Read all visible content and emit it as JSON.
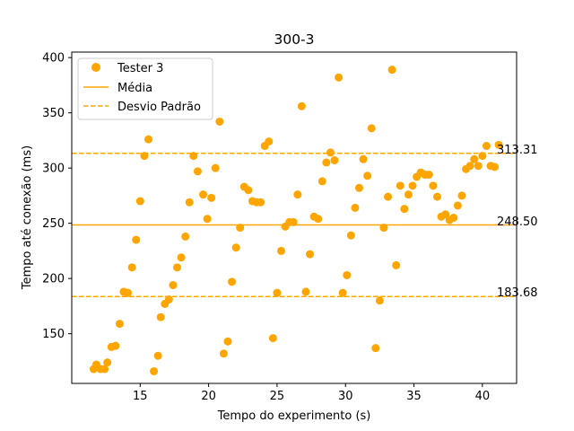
{
  "chart_data": {
    "type": "scatter",
    "title": "300-3",
    "xlabel": "Tempo do experimento (s)",
    "ylabel": "Tempo até conexão (ms)",
    "xlim": [
      10.0,
      42.5
    ],
    "ylim": [
      105,
      405
    ],
    "xticks": [
      15,
      20,
      25,
      30,
      35,
      40
    ],
    "yticks": [
      150,
      200,
      250,
      300,
      350,
      400
    ],
    "grid": false,
    "legend_position": "top-left",
    "color": "#ffa500",
    "legend": {
      "scatter_label": "Tester 3",
      "mean_label": "Média",
      "std_label": "Desvio Padrão"
    },
    "mean": 248.5,
    "upper": 313.31,
    "lower": 183.68,
    "mean_text": "248.50",
    "upper_text": "313.31",
    "lower_text": "183.68",
    "points": [
      [
        11.6,
        118
      ],
      [
        11.8,
        122
      ],
      [
        12.1,
        118
      ],
      [
        12.4,
        118
      ],
      [
        12.6,
        124
      ],
      [
        12.9,
        138
      ],
      [
        13.2,
        139
      ],
      [
        13.5,
        159
      ],
      [
        13.8,
        188
      ],
      [
        14.1,
        187
      ],
      [
        14.4,
        210
      ],
      [
        14.7,
        235
      ],
      [
        15.0,
        270
      ],
      [
        15.3,
        311
      ],
      [
        15.6,
        326
      ],
      [
        16.0,
        116
      ],
      [
        16.3,
        130
      ],
      [
        16.5,
        165
      ],
      [
        16.8,
        177
      ],
      [
        17.1,
        181
      ],
      [
        17.4,
        194
      ],
      [
        17.7,
        210
      ],
      [
        18.0,
        219
      ],
      [
        18.3,
        238
      ],
      [
        18.6,
        269
      ],
      [
        18.9,
        311
      ],
      [
        19.2,
        297
      ],
      [
        19.6,
        276
      ],
      [
        19.9,
        254
      ],
      [
        20.2,
        273
      ],
      [
        20.5,
        300
      ],
      [
        20.8,
        342
      ],
      [
        21.1,
        132
      ],
      [
        21.4,
        143
      ],
      [
        21.7,
        197
      ],
      [
        22.0,
        228
      ],
      [
        22.3,
        246
      ],
      [
        22.6,
        283
      ],
      [
        22.9,
        280
      ],
      [
        23.2,
        270
      ],
      [
        23.5,
        269
      ],
      [
        23.8,
        269
      ],
      [
        24.1,
        320
      ],
      [
        24.4,
        324
      ],
      [
        24.7,
        146
      ],
      [
        25.0,
        187
      ],
      [
        25.3,
        225
      ],
      [
        25.6,
        247
      ],
      [
        25.9,
        251
      ],
      [
        26.2,
        251
      ],
      [
        26.5,
        276
      ],
      [
        26.8,
        356
      ],
      [
        27.1,
        188
      ],
      [
        27.4,
        222
      ],
      [
        27.7,
        256
      ],
      [
        28.0,
        254
      ],
      [
        28.3,
        288
      ],
      [
        28.6,
        305
      ],
      [
        28.9,
        314
      ],
      [
        29.2,
        307
      ],
      [
        29.5,
        382
      ],
      [
        29.8,
        187
      ],
      [
        30.1,
        203
      ],
      [
        30.4,
        239
      ],
      [
        30.7,
        264
      ],
      [
        31.0,
        282
      ],
      [
        31.3,
        308
      ],
      [
        31.6,
        293
      ],
      [
        31.9,
        336
      ],
      [
        32.2,
        137
      ],
      [
        32.5,
        180
      ],
      [
        32.8,
        246
      ],
      [
        33.1,
        274
      ],
      [
        33.4,
        389
      ],
      [
        33.7,
        212
      ],
      [
        34.0,
        284
      ],
      [
        34.3,
        263
      ],
      [
        34.6,
        276
      ],
      [
        34.9,
        284
      ],
      [
        35.2,
        292
      ],
      [
        35.5,
        296
      ],
      [
        35.8,
        294
      ],
      [
        36.1,
        294
      ],
      [
        36.4,
        284
      ],
      [
        36.7,
        274
      ],
      [
        37.0,
        256
      ],
      [
        37.3,
        258
      ],
      [
        37.6,
        253
      ],
      [
        37.9,
        255
      ],
      [
        38.2,
        266
      ],
      [
        38.5,
        275
      ],
      [
        38.8,
        299
      ],
      [
        39.1,
        302
      ],
      [
        39.4,
        308
      ],
      [
        39.7,
        302
      ],
      [
        40.0,
        311
      ],
      [
        40.3,
        320
      ],
      [
        40.6,
        302
      ],
      [
        40.9,
        301
      ],
      [
        41.2,
        321
      ]
    ]
  }
}
